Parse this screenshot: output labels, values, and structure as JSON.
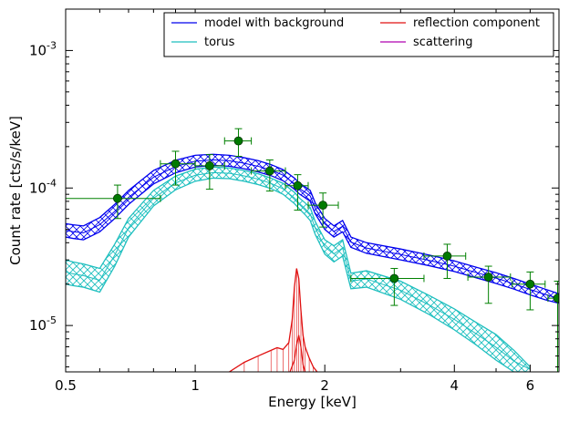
{
  "colors": {
    "model": "#0000ee",
    "torus": "#1fbfbf",
    "reflection": "#e01010",
    "scattering": "#b000b0",
    "data": "#007a00",
    "errorbar": "#008000"
  },
  "chart_data": {
    "type": "scatter",
    "xlabel": "Energy [keV]",
    "ylabel": "Count rate [cts/s/keV]",
    "xscale": "log",
    "yscale": "log",
    "xlim": [
      0.5,
      7.0
    ],
    "ylim": [
      4.6e-06,
      0.002
    ],
    "xticks": [
      {
        "value": 0.5,
        "label": "0.5"
      },
      {
        "value": 1,
        "label": "1"
      },
      {
        "value": 2,
        "label": "2"
      },
      {
        "value": 4,
        "label": "4"
      },
      {
        "value": 6,
        "label": "6"
      }
    ],
    "yticks": [
      {
        "value": 1e-05,
        "base": "10",
        "exp": "-5"
      },
      {
        "value": 0.0001,
        "base": "10",
        "exp": "-4"
      },
      {
        "value": 0.001,
        "base": "10",
        "exp": "-3"
      }
    ],
    "legend": {
      "placement": "top-right",
      "columns": 2,
      "entries": [
        {
          "label": "model with background",
          "color_key": "model"
        },
        {
          "label": "torus",
          "color_key": "torus"
        },
        {
          "label": "reflection component",
          "color_key": "reflection"
        },
        {
          "label": "scattering",
          "color_key": "scattering"
        }
      ]
    },
    "data_points": [
      {
        "x": 0.66,
        "y": 8.4e-05,
        "xerr": [
          0.5,
          0.83
        ],
        "yerr": [
          6e-05,
          0.000105
        ]
      },
      {
        "x": 0.9,
        "y": 0.00015,
        "xerr": [
          0.83,
          1.0
        ],
        "yerr": [
          0.000105,
          0.000185
        ]
      },
      {
        "x": 1.08,
        "y": 0.000145,
        "xerr": [
          1.0,
          1.17
        ],
        "yerr": [
          9.8e-05,
          0.000175
        ]
      },
      {
        "x": 1.26,
        "y": 0.00022,
        "xerr": [
          1.17,
          1.35
        ],
        "yerr": [
          0.00017,
          0.00027
        ]
      },
      {
        "x": 1.49,
        "y": 0.000133,
        "xerr": [
          1.35,
          1.62
        ],
        "yerr": [
          9.5e-05,
          0.00016
        ]
      },
      {
        "x": 1.73,
        "y": 0.000104,
        "xerr": [
          1.62,
          1.83
        ],
        "yerr": [
          6.9e-05,
          0.000125
        ]
      },
      {
        "x": 1.98,
        "y": 7.5e-05,
        "xerr": [
          1.83,
          2.15
        ],
        "yerr": [
          5.2e-05,
          9.2e-05
        ]
      },
      {
        "x": 2.9,
        "y": 2.2e-05,
        "xerr": [
          2.3,
          3.4
        ],
        "yerr": [
          1.4e-05,
          2.6e-05
        ]
      },
      {
        "x": 3.85,
        "y": 3.2e-05,
        "xerr": [
          3.4,
          4.25
        ],
        "yerr": [
          2.2e-05,
          3.9e-05
        ]
      },
      {
        "x": 4.8,
        "y": 2.25e-05,
        "xerr": [
          4.3,
          5.4
        ],
        "yerr": [
          1.45e-05,
          2.7e-05
        ]
      },
      {
        "x": 6.0,
        "y": 2e-05,
        "xerr": [
          5.45,
          6.5
        ],
        "yerr": [
          1.3e-05,
          2.45e-05
        ]
      },
      {
        "x": 6.95,
        "y": 1.58e-05,
        "xerr": [
          6.6,
          7.0
        ],
        "yerr": [
          4.6e-06,
          2.1e-05
        ]
      }
    ],
    "model_band": {
      "x": [
        0.5,
        0.52,
        0.55,
        0.6,
        0.65,
        0.7,
        0.8,
        0.9,
        1.0,
        1.1,
        1.2,
        1.3,
        1.4,
        1.5,
        1.6,
        1.7,
        1.75,
        1.8,
        1.85,
        1.9,
        2.0,
        2.1,
        2.2,
        2.3,
        2.5,
        3.0,
        3.5,
        4.0,
        4.5,
        5.0,
        5.5,
        6.0,
        6.5,
        7.0
      ],
      "upper": [
        5.5e-05,
        5.4e-05,
        5.3e-05,
        6.1e-05,
        7.6e-05,
        9.6e-05,
        0.000134,
        0.000159,
        0.000173,
        0.000176,
        0.000173,
        0.000166,
        0.000158,
        0.000148,
        0.000136,
        0.000118,
        0.000108,
        0.000102,
        9.6e-05,
        7.8e-05,
        6e-05,
        5.3e-05,
        5.8e-05,
        4.4e-05,
        4e-05,
        3.6e-05,
        3.25e-05,
        2.95e-05,
        2.65e-05,
        2.42e-05,
        2.2e-05,
        2e-05,
        1.84e-05,
        1.7e-05
      ],
      "lower": [
        4.4e-05,
        4.3e-05,
        4.2e-05,
        4.8e-05,
        6e-05,
        7.6e-05,
        0.000107,
        0.000129,
        0.000142,
        0.000146,
        0.000144,
        0.000138,
        0.000131,
        0.000123,
        0.000113,
        9.8e-05,
        9e-05,
        8.5e-05,
        8e-05,
        6.5e-05,
        5e-05,
        4.4e-05,
        4.8e-05,
        3.7e-05,
        3.35e-05,
        3e-05,
        2.72e-05,
        2.47e-05,
        2.22e-05,
        2.02e-05,
        1.84e-05,
        1.67e-05,
        1.54e-05,
        1.45e-05
      ]
    },
    "torus_band": {
      "x": [
        0.5,
        0.52,
        0.55,
        0.6,
        0.65,
        0.7,
        0.8,
        0.9,
        1.0,
        1.1,
        1.2,
        1.3,
        1.4,
        1.5,
        1.6,
        1.7,
        1.75,
        1.8,
        1.85,
        1.9,
        2.0,
        2.1,
        2.2,
        2.3,
        2.5,
        3.0,
        3.5,
        4.0,
        4.5,
        5.0,
        5.5,
        6.0
      ],
      "upper": [
        3e-05,
        2.9e-05,
        2.8e-05,
        2.6e-05,
        3.9e-05,
        6e-05,
        9.6e-05,
        0.000122,
        0.000137,
        0.000142,
        0.00014,
        0.000134,
        0.000127,
        0.000118,
        0.000108,
        9.3e-05,
        8.4e-05,
        7.8e-05,
        7.2e-05,
        5.7e-05,
        4.2e-05,
        3.8e-05,
        4.2e-05,
        2.4e-05,
        2.5e-05,
        2.1e-05,
        1.65e-05,
        1.32e-05,
        1.05e-05,
        8.6e-06,
        6.6e-06,
        5e-06
      ],
      "lower": [
        2e-05,
        1.95e-05,
        1.9e-05,
        1.75e-05,
        2.7e-05,
        4.4e-05,
        7.4e-05,
        9.7e-05,
        0.000112,
        0.000118,
        0.000117,
        0.000112,
        0.000106,
        9.9e-05,
        9e-05,
        7.7e-05,
        7e-05,
        6.4e-05,
        5.8e-05,
        4.6e-05,
        3.3e-05,
        2.9e-05,
        3.2e-05,
        1.85e-05,
        1.9e-05,
        1.55e-05,
        1.2e-05,
        9.3e-06,
        7.2e-06,
        5.6e-06,
        4.6e-06,
        4.6e-06
      ]
    },
    "reflection_curve": {
      "x": [
        1.2,
        1.3,
        1.4,
        1.5,
        1.55,
        1.6,
        1.65,
        1.68,
        1.7,
        1.72,
        1.74,
        1.76,
        1.78,
        1.8,
        1.84,
        1.88,
        1.92
      ],
      "y": [
        4.6e-06,
        5.4e-06,
        6e-06,
        6.6e-06,
        6.9e-06,
        6.7e-06,
        7.5e-06,
        1.1e-05,
        1.9e-05,
        2.6e-05,
        2.2e-05,
        1.3e-05,
        8.5e-06,
        7e-06,
        5.8e-06,
        5e-06,
        4.6e-06
      ]
    },
    "reflection_sub_curve": {
      "x": [
        1.66,
        1.7,
        1.72,
        1.74,
        1.76,
        1.78,
        1.8
      ],
      "y": [
        4.6e-06,
        5.6e-06,
        7.2e-06,
        8.5e-06,
        7e-06,
        5.2e-06,
        4.6e-06
      ]
    }
  }
}
